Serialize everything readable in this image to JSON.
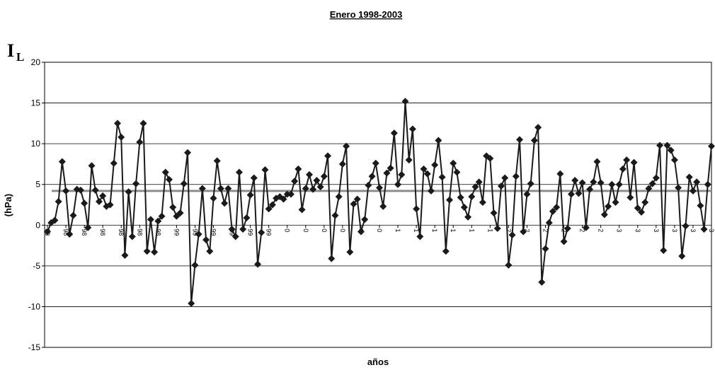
{
  "chart_data": {
    "type": "line",
    "title": "Enero 1998-2003",
    "symbol": "I",
    "symbol_subscript": "L",
    "ylabel": "(hPa)",
    "xlabel": "años",
    "ylim": [
      -15,
      20
    ],
    "yticks": [
      -15,
      -10,
      -5,
      0,
      5,
      10,
      15,
      20
    ],
    "grid": true,
    "reference_line": {
      "value": 4.2,
      "color": "#8c8c8c"
    },
    "categories": [
      "98",
      null,
      null,
      null,
      null,
      "98",
      null,
      null,
      null,
      null,
      "98",
      null,
      null,
      null,
      null,
      "98",
      null,
      null,
      null,
      null,
      "98",
      null,
      null,
      null,
      null,
      "98",
      null,
      null,
      null,
      null,
      "98",
      null,
      null,
      null,
      null,
      "99",
      null,
      null,
      null,
      null,
      "99",
      null,
      null,
      null,
      null,
      "99",
      null,
      null,
      null,
      null,
      "99",
      null,
      null,
      null,
      null,
      "99",
      null,
      null,
      null,
      null,
      "99",
      null,
      null,
      null,
      null,
      "0",
      null,
      null,
      null,
      null,
      "0",
      null,
      null,
      null,
      null,
      "0",
      null,
      null,
      null,
      null,
      "0",
      null,
      null,
      null,
      null,
      "0",
      null,
      null,
      null,
      null,
      "0",
      null,
      null,
      null,
      null,
      "1",
      null,
      null,
      null,
      null,
      "1",
      null,
      null,
      null,
      null,
      "1",
      null,
      null,
      null,
      null,
      "1",
      null,
      null,
      null,
      null,
      "1",
      null,
      null,
      null,
      null,
      "1",
      null,
      null,
      null,
      null,
      "2",
      null,
      null,
      null,
      null,
      "2",
      null,
      null,
      null,
      null,
      "2",
      null,
      null,
      null,
      null,
      "2",
      null,
      null,
      null,
      null,
      "2",
      null,
      null,
      null,
      null,
      "2",
      null,
      null,
      null,
      null,
      "3",
      null,
      null,
      null,
      null,
      "3",
      null,
      null,
      null,
      null,
      "3",
      null,
      null,
      null,
      null,
      "3",
      null,
      null,
      null,
      null,
      "3",
      null,
      null,
      null,
      null,
      "3"
    ],
    "series": [
      {
        "color": "#1a1a1a",
        "values": [
          -0.8,
          0.3,
          0.6,
          2.9,
          7.8,
          4.2,
          -1.1,
          1.2,
          4.4,
          4.3,
          2.7,
          -0.3,
          7.3,
          4.3,
          2.9,
          3.6,
          2.3,
          2.5,
          7.6,
          12.5,
          10.8,
          -3.7,
          4.1,
          -1.4,
          5.1,
          10.2,
          12.5,
          -3.2,
          0.7,
          -3.3,
          0.5,
          1.1,
          6.5,
          5.6,
          2.2,
          1.1,
          1.5,
          5.1,
          8.9,
          -9.6,
          -4.9,
          -1.1,
          4.5,
          -1.8,
          -3.2,
          3.3,
          7.9,
          4.5,
          2.7,
          4.5,
          -0.5,
          -1.4,
          6.5,
          -0.5,
          0.9,
          3.7,
          5.8,
          -4.8,
          -0.9,
          6.8,
          2.0,
          2.5,
          3.3,
          3.5,
          3.2,
          3.8,
          3.8,
          5.4,
          6.9,
          1.9,
          4.5,
          6.2,
          4.4,
          5.5,
          4.7,
          6.0,
          8.5,
          -4.1,
          1.2,
          3.5,
          7.5,
          9.7,
          -3.3,
          2.6,
          3.2,
          -0.8,
          0.7,
          4.9,
          6.0,
          7.6,
          4.6,
          2.3,
          6.4,
          7.0,
          11.3,
          5.0,
          6.2,
          15.2,
          8.0,
          11.8,
          2.0,
          -1.4,
          6.9,
          6.3,
          4.2,
          7.4,
          10.4,
          5.9,
          -3.2,
          3.1,
          7.6,
          6.5,
          3.4,
          2.2,
          1.0,
          3.5,
          4.7,
          5.3,
          2.8,
          8.5,
          8.2,
          1.5,
          -0.4,
          4.8,
          5.8,
          -4.9,
          -1.2,
          6.0,
          10.5,
          -0.8,
          3.8,
          5.1,
          10.4,
          12.0,
          -7.0,
          -2.9,
          0.3,
          1.7,
          2.2,
          6.3,
          -2.0,
          -0.4,
          3.8,
          5.5,
          3.9,
          5.2,
          -0.3,
          4.4,
          5.3,
          7.8,
          5.2,
          1.3,
          2.3,
          5.0,
          2.8,
          5.0,
          6.9,
          8.0,
          3.4,
          7.7,
          2.1,
          1.6,
          2.8,
          4.5,
          5.1,
          5.8,
          9.8,
          -3.1,
          9.8,
          9.2,
          8.0,
          4.6,
          -3.8,
          -0.1,
          5.9,
          4.2,
          5.3,
          2.4,
          -0.5,
          5.0,
          9.7
        ]
      }
    ]
  }
}
